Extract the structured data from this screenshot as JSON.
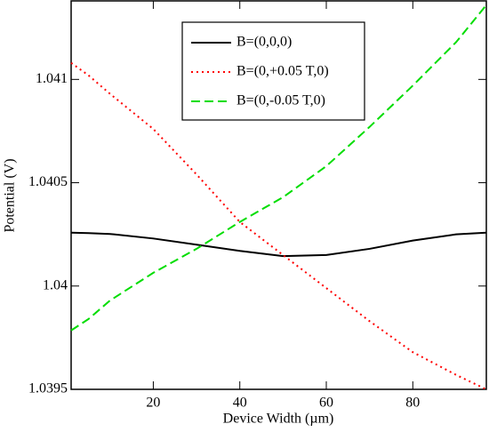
{
  "chart_data": {
    "type": "line",
    "x_label": "Device Width (µm)",
    "y_label": "Potential (V)",
    "x": [
      1,
      5,
      10,
      20,
      30,
      40,
      50,
      60,
      70,
      80,
      90,
      97
    ],
    "series": [
      {
        "name": "B=(0,0,0)",
        "color": "#000000",
        "dash": "none",
        "values": [
          1.040258,
          1.040256,
          1.040252,
          1.04023,
          1.0402,
          1.04017,
          1.040145,
          1.04015,
          1.04018,
          1.04022,
          1.04025,
          1.040258
        ]
      },
      {
        "name": "B=(0,+0.05 T,0)",
        "color": "#ff0000",
        "dash": "2,4",
        "values": [
          1.04108,
          1.04102,
          1.04093,
          1.04076,
          1.04054,
          1.04031,
          1.04015,
          1.03999,
          1.03983,
          1.03968,
          1.03957,
          1.0395
        ]
      },
      {
        "name": "B=(0,-0.05 T,0)",
        "color": "#00dd00",
        "dash": "10,5",
        "values": [
          1.039785,
          1.03984,
          1.03993,
          1.040064,
          1.04018,
          1.04031,
          1.04043,
          1.04058,
          1.04077,
          1.04097,
          1.04118,
          1.04136
        ]
      }
    ],
    "xlim": [
      1,
      97
    ],
    "ylim": [
      1.0395,
      1.04138
    ],
    "xticks": [
      20,
      40,
      60,
      80
    ],
    "yticks": [
      1.0395,
      1.04,
      1.0405,
      1.041
    ],
    "legend": "top-center"
  }
}
